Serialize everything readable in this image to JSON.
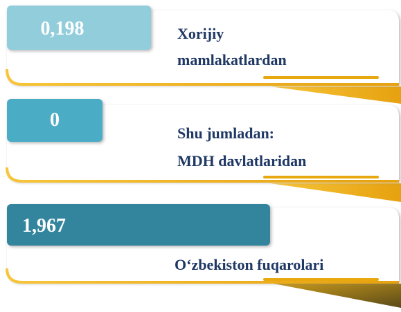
{
  "items": [
    {
      "value": "0,198",
      "label": [
        "Xorijiy",
        "mamlakatlardan"
      ]
    },
    {
      "value": "0",
      "label": [
        "Shu jumladan:",
        "MDH davlatlaridan"
      ]
    },
    {
      "value": "1,967",
      "label": [
        "O‘zbekiston fuqarolari"
      ]
    }
  ]
}
